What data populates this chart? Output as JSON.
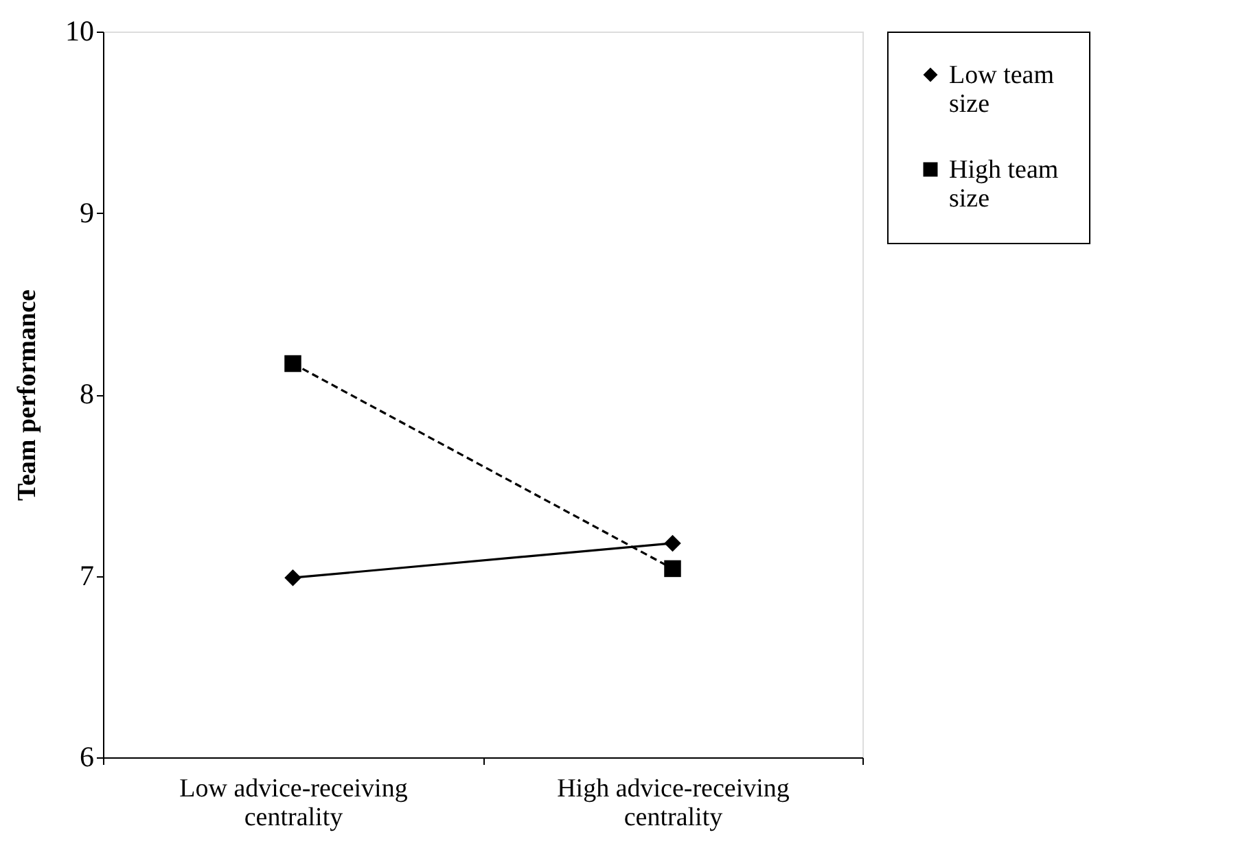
{
  "chart_data": {
    "type": "line",
    "ylabel": "Team performance",
    "categories": [
      "Low advice-receiving centrality",
      "High advice-receiving centrality"
    ],
    "series": [
      {
        "name": "Low team size",
        "color": "#000000",
        "values": [
          6.99,
          7.18
        ],
        "marker": "diamond",
        "line_style": "solid"
      },
      {
        "name": "High team size",
        "color": "#000000",
        "values": [
          8.17,
          7.04
        ],
        "marker": "square",
        "line_style": "dashed"
      }
    ],
    "ylim": [
      6,
      10
    ],
    "yticks": [
      6,
      7,
      8,
      9,
      10
    ],
    "grid": false,
    "legend": "right"
  }
}
